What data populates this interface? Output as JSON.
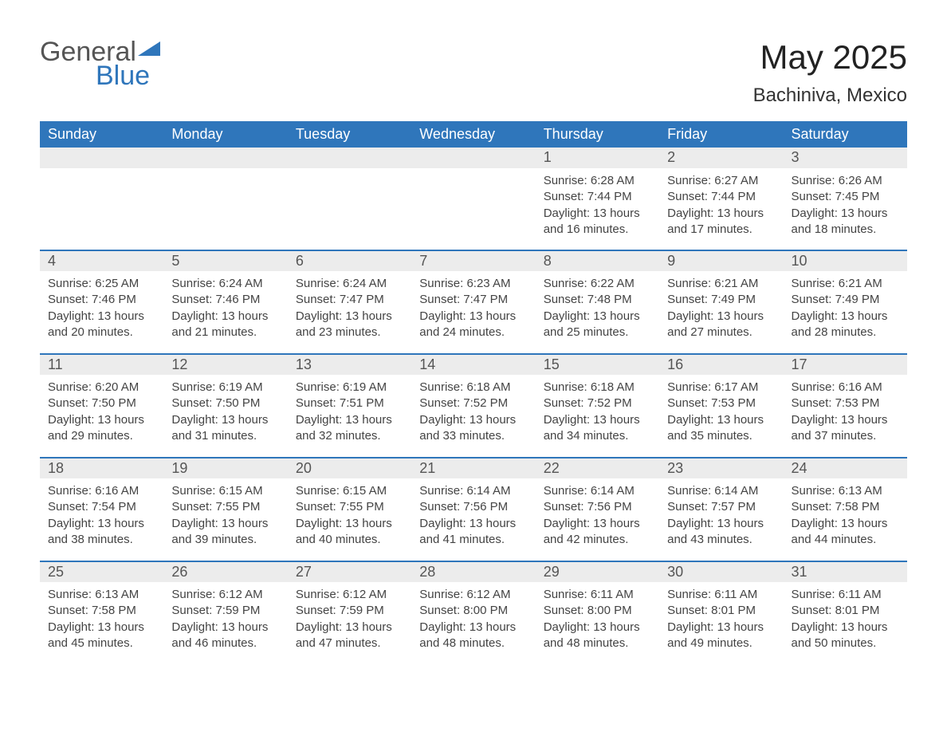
{
  "logo": {
    "general": "General",
    "blue": "Blue",
    "tri_color": "#2f76bb",
    "text_color": "#555555"
  },
  "title": "May 2025",
  "location": "Bachiniva, Mexico",
  "colors": {
    "header_bg": "#2f76bb",
    "header_text": "#ffffff",
    "daynum_bg": "#ececec",
    "daynum_text": "#555555",
    "body_text": "#444444",
    "week_border": "#2f76bb",
    "page_bg": "#ffffff"
  },
  "fonts": {
    "title_size": 42,
    "location_size": 24,
    "weekday_size": 18,
    "daynum_size": 18,
    "body_size": 15
  },
  "weekdays": [
    "Sunday",
    "Monday",
    "Tuesday",
    "Wednesday",
    "Thursday",
    "Friday",
    "Saturday"
  ],
  "weeks": [
    [
      null,
      null,
      null,
      null,
      {
        "n": "1",
        "sunrise": "6:28 AM",
        "sunset": "7:44 PM",
        "dl": "13 hours and 16 minutes."
      },
      {
        "n": "2",
        "sunrise": "6:27 AM",
        "sunset": "7:44 PM",
        "dl": "13 hours and 17 minutes."
      },
      {
        "n": "3",
        "sunrise": "6:26 AM",
        "sunset": "7:45 PM",
        "dl": "13 hours and 18 minutes."
      }
    ],
    [
      {
        "n": "4",
        "sunrise": "6:25 AM",
        "sunset": "7:46 PM",
        "dl": "13 hours and 20 minutes."
      },
      {
        "n": "5",
        "sunrise": "6:24 AM",
        "sunset": "7:46 PM",
        "dl": "13 hours and 21 minutes."
      },
      {
        "n": "6",
        "sunrise": "6:24 AM",
        "sunset": "7:47 PM",
        "dl": "13 hours and 23 minutes."
      },
      {
        "n": "7",
        "sunrise": "6:23 AM",
        "sunset": "7:47 PM",
        "dl": "13 hours and 24 minutes."
      },
      {
        "n": "8",
        "sunrise": "6:22 AM",
        "sunset": "7:48 PM",
        "dl": "13 hours and 25 minutes."
      },
      {
        "n": "9",
        "sunrise": "6:21 AM",
        "sunset": "7:49 PM",
        "dl": "13 hours and 27 minutes."
      },
      {
        "n": "10",
        "sunrise": "6:21 AM",
        "sunset": "7:49 PM",
        "dl": "13 hours and 28 minutes."
      }
    ],
    [
      {
        "n": "11",
        "sunrise": "6:20 AM",
        "sunset": "7:50 PM",
        "dl": "13 hours and 29 minutes."
      },
      {
        "n": "12",
        "sunrise": "6:19 AM",
        "sunset": "7:50 PM",
        "dl": "13 hours and 31 minutes."
      },
      {
        "n": "13",
        "sunrise": "6:19 AM",
        "sunset": "7:51 PM",
        "dl": "13 hours and 32 minutes."
      },
      {
        "n": "14",
        "sunrise": "6:18 AM",
        "sunset": "7:52 PM",
        "dl": "13 hours and 33 minutes."
      },
      {
        "n": "15",
        "sunrise": "6:18 AM",
        "sunset": "7:52 PM",
        "dl": "13 hours and 34 minutes."
      },
      {
        "n": "16",
        "sunrise": "6:17 AM",
        "sunset": "7:53 PM",
        "dl": "13 hours and 35 minutes."
      },
      {
        "n": "17",
        "sunrise": "6:16 AM",
        "sunset": "7:53 PM",
        "dl": "13 hours and 37 minutes."
      }
    ],
    [
      {
        "n": "18",
        "sunrise": "6:16 AM",
        "sunset": "7:54 PM",
        "dl": "13 hours and 38 minutes."
      },
      {
        "n": "19",
        "sunrise": "6:15 AM",
        "sunset": "7:55 PM",
        "dl": "13 hours and 39 minutes."
      },
      {
        "n": "20",
        "sunrise": "6:15 AM",
        "sunset": "7:55 PM",
        "dl": "13 hours and 40 minutes."
      },
      {
        "n": "21",
        "sunrise": "6:14 AM",
        "sunset": "7:56 PM",
        "dl": "13 hours and 41 minutes."
      },
      {
        "n": "22",
        "sunrise": "6:14 AM",
        "sunset": "7:56 PM",
        "dl": "13 hours and 42 minutes."
      },
      {
        "n": "23",
        "sunrise": "6:14 AM",
        "sunset": "7:57 PM",
        "dl": "13 hours and 43 minutes."
      },
      {
        "n": "24",
        "sunrise": "6:13 AM",
        "sunset": "7:58 PM",
        "dl": "13 hours and 44 minutes."
      }
    ],
    [
      {
        "n": "25",
        "sunrise": "6:13 AM",
        "sunset": "7:58 PM",
        "dl": "13 hours and 45 minutes."
      },
      {
        "n": "26",
        "sunrise": "6:12 AM",
        "sunset": "7:59 PM",
        "dl": "13 hours and 46 minutes."
      },
      {
        "n": "27",
        "sunrise": "6:12 AM",
        "sunset": "7:59 PM",
        "dl": "13 hours and 47 minutes."
      },
      {
        "n": "28",
        "sunrise": "6:12 AM",
        "sunset": "8:00 PM",
        "dl": "13 hours and 48 minutes."
      },
      {
        "n": "29",
        "sunrise": "6:11 AM",
        "sunset": "8:00 PM",
        "dl": "13 hours and 48 minutes."
      },
      {
        "n": "30",
        "sunrise": "6:11 AM",
        "sunset": "8:01 PM",
        "dl": "13 hours and 49 minutes."
      },
      {
        "n": "31",
        "sunrise": "6:11 AM",
        "sunset": "8:01 PM",
        "dl": "13 hours and 50 minutes."
      }
    ]
  ],
  "labels": {
    "sunrise": "Sunrise:",
    "sunset": "Sunset:",
    "daylight": "Daylight:"
  }
}
